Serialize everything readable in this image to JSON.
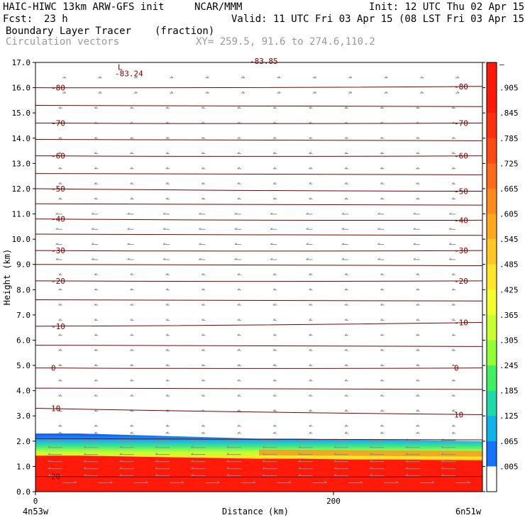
{
  "header": {
    "model": "HAIC-HIWC 13km ARW-GFS init",
    "org": "NCAR/MMM",
    "init": "Init: 12 UTC Thu 02 Apr 15",
    "fcst_label": "Fcst:",
    "fcst_value": "23 h",
    "valid": "Valid: 11 UTC Fri 03 Apr 15 (08 LST Fri 03 Apr 15)",
    "field": "Boundary Layer Tracer",
    "units": "(fraction)",
    "overlay": "Circulation vectors",
    "xy": "XY= 259.5, 91.6 to 274.6,110.2"
  },
  "chart_data": {
    "type": "heatmap",
    "title": "Boundary Layer Tracer",
    "ylabel": "Height (km)",
    "xlabel": "Distance (km)",
    "xlim": [
      0,
      300
    ],
    "ylim": [
      0,
      17
    ],
    "y_ticks": [
      "0.0",
      "1.0",
      "2.0",
      "3.0",
      "4.0",
      "5.0",
      "6.0",
      "7.0",
      "8.0",
      "9.0",
      "10.0",
      "11.0",
      "12.0",
      "13.0",
      "14.0",
      "15.0",
      "16.0",
      "17.0"
    ],
    "x_ticks": [
      {
        "value": 0,
        "label": "0"
      },
      {
        "value": 200,
        "label": "200"
      }
    ],
    "x_left_label": "4n53w",
    "x_right_label": "6n51w",
    "colorbar": {
      "labels": [
        "–",
        ".905",
        ".845",
        ".785",
        ".725",
        ".665",
        ".605",
        ".545",
        ".485",
        ".425",
        ".365",
        ".305",
        ".245",
        ".185",
        ".125",
        ".065",
        ".005"
      ],
      "colors": [
        "#ff1a0a",
        "#ff1a0a",
        "#ff3010",
        "#ff4a14",
        "#ff6a18",
        "#ff8a1c",
        "#ffa820",
        "#ffc824",
        "#ffe628",
        "#f2ff2c",
        "#c8ff30",
        "#90ff34",
        "#40f060",
        "#20d8a8",
        "#10b4e8",
        "#1474ff",
        "#ffffff"
      ]
    },
    "temperature_contours": [
      {
        "label": "-80",
        "height_left": 16.0,
        "height_right": 16.05
      },
      {
        "label": "-70",
        "height_left": 14.6,
        "height_right": 14.6
      },
      {
        "label": "-60",
        "height_left": 13.3,
        "height_right": 13.3
      },
      {
        "label": "-50",
        "height_left": 12.0,
        "height_right": 11.9
      },
      {
        "label": "-40",
        "height_left": 10.8,
        "height_right": 10.75
      },
      {
        "label": "-30",
        "height_left": 9.55,
        "height_right": 9.55
      },
      {
        "label": "-20",
        "height_left": 8.35,
        "height_right": 8.35
      },
      {
        "label": "-10",
        "height_left": 6.55,
        "height_right": 6.7
      },
      {
        "label": "0",
        "height_left": 4.9,
        "height_right": 4.9
      },
      {
        "label": "10",
        "height_left": 3.3,
        "height_right": 3.05
      },
      {
        "label": "20",
        "height_left": 0.6,
        "height_right": 0.6
      }
    ],
    "min_label": "L",
    "min_value": "-83.24",
    "top_label": "-83.85",
    "tracer_top_km": [
      2.3,
      2.3,
      2.25,
      2.2,
      2.15,
      2.1,
      2.1,
      2.05,
      2.05,
      2.0
    ],
    "tracer_top_x_km": [
      0,
      30,
      60,
      90,
      120,
      150,
      180,
      210,
      240,
      300
    ]
  }
}
